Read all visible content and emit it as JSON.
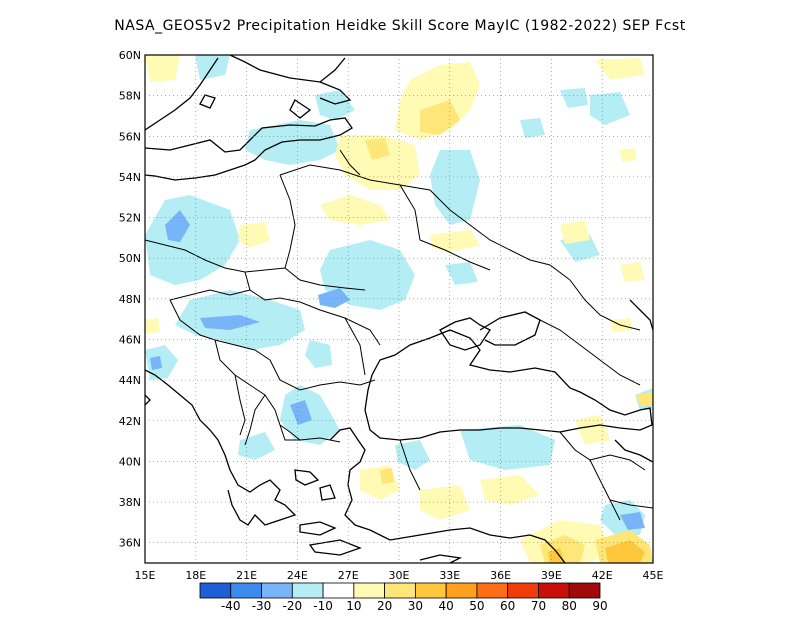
{
  "title": "NASA_GEOS5v2  Precipitation Heidke Skill Score MayIC (1982-2022) SEP Fcst",
  "map": {
    "lat_labels": [
      "36N",
      "38N",
      "40N",
      "42N",
      "44N",
      "46N",
      "48N",
      "50N",
      "52N",
      "54N",
      "56N",
      "58N",
      "60N"
    ],
    "lon_labels": [
      "15E",
      "18E",
      "21E",
      "24E",
      "27E",
      "30E",
      "33E",
      "36E",
      "39E",
      "42E",
      "45E"
    ],
    "extent": {
      "lon_min": 15,
      "lon_max": 45,
      "lat_min": 35,
      "lat_max": 60
    }
  },
  "colorbar": {
    "labels": [
      "-40",
      "-30",
      "-20",
      "-10",
      "10",
      "20",
      "30",
      "40",
      "50",
      "60",
      "70",
      "80",
      "90"
    ],
    "colors": [
      "#1e5fd8",
      "#3c8cf0",
      "#78b4f8",
      "#b4eef4",
      "#ffffff",
      "#fffab4",
      "#ffe678",
      "#ffc83c",
      "#ffa01e",
      "#ff6e14",
      "#f03c0a",
      "#c80f0a",
      "#a00a0a"
    ]
  }
}
